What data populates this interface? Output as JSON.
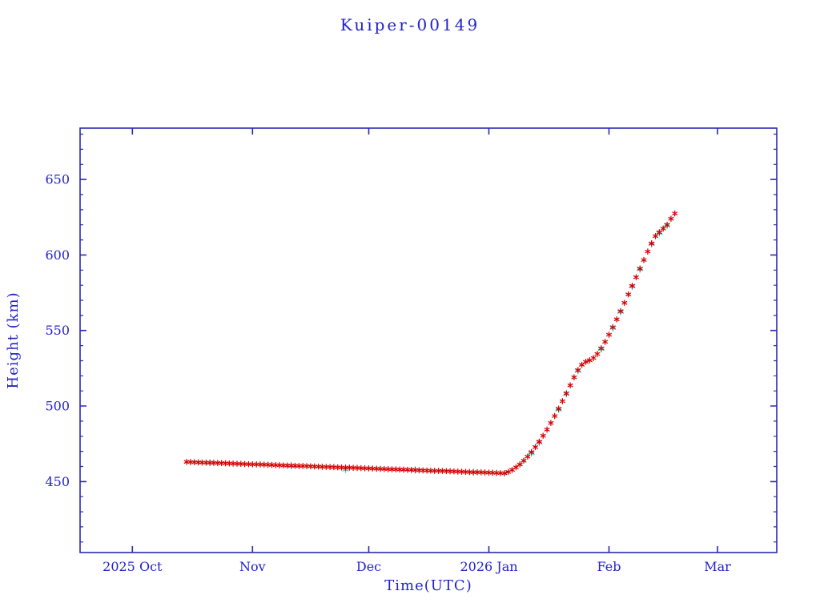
{
  "chart": {
    "title": "Kuiper-00149",
    "xlabel": "Time(UTC)",
    "ylabel": "Height (km)",
    "text_color": "#2323c8",
    "axis_color": "#2a2ab4",
    "series_colors": {
      "primary": "#d40000",
      "secondary": "#3fd9d9"
    }
  },
  "chart_data": {
    "type": "scatter",
    "title": "Kuiper-00149",
    "xlabel": "Time(UTC)",
    "ylabel": "Height (km)",
    "x_unit": "days since 2025-10-01",
    "xlim": [
      -13.5,
      166.3
    ],
    "ylim": [
      403,
      684
    ],
    "grid": false,
    "legend": null,
    "x_ticks": [
      {
        "label": "2025 Oct",
        "day": 0
      },
      {
        "label": "Nov",
        "day": 31
      },
      {
        "label": "Dec",
        "day": 61
      },
      {
        "label": "2026 Jan",
        "day": 92
      },
      {
        "label": "Feb",
        "day": 123
      },
      {
        "label": "Mar",
        "day": 151
      }
    ],
    "y_ticks": {
      "major": [
        450,
        500,
        550,
        600,
        650
      ],
      "minor_step": 10
    },
    "series": [
      {
        "name": "height-secondary",
        "color_key": "secondary",
        "marker": "asterisk",
        "marker_size": 3.9,
        "points": [
          [
            20,
            462.4
          ],
          [
            41,
            460.4
          ],
          [
            55,
            458.0
          ],
          [
            73,
            457.7
          ],
          [
            88,
            456.1
          ],
          [
            103,
            468.8
          ],
          [
            105,
            475.9
          ],
          [
            110,
            497.7
          ],
          [
            112,
            508.0
          ],
          [
            115,
            523.4
          ],
          [
            121,
            537.8
          ],
          [
            124,
            551.8
          ],
          [
            126,
            562.4
          ],
          [
            129,
            579.2
          ],
          [
            131,
            590.6
          ],
          [
            134,
            607.3
          ],
          [
            136,
            614.6
          ],
          [
            138,
            619.6
          ]
        ]
      },
      {
        "name": "height-primary",
        "color_key": "primary",
        "marker": "asterisk",
        "marker_size": 3.2,
        "points": [
          [
            14,
            463.0
          ],
          [
            15,
            462.9
          ],
          [
            16,
            462.8
          ],
          [
            17,
            462.7
          ],
          [
            18,
            462.6
          ],
          [
            19,
            462.5
          ],
          [
            20,
            462.5
          ],
          [
            21,
            462.4
          ],
          [
            22,
            462.3
          ],
          [
            23,
            462.2
          ],
          [
            24,
            462.1
          ],
          [
            25,
            462.0
          ],
          [
            26,
            461.9
          ],
          [
            27,
            461.8
          ],
          [
            28,
            461.7
          ],
          [
            29,
            461.6
          ],
          [
            30,
            461.5
          ],
          [
            31,
            461.4
          ],
          [
            32,
            461.4
          ],
          [
            33,
            461.3
          ],
          [
            34,
            461.2
          ],
          [
            35,
            461.1
          ],
          [
            36,
            461.0
          ],
          [
            37,
            460.9
          ],
          [
            38,
            460.8
          ],
          [
            39,
            460.7
          ],
          [
            40,
            460.6
          ],
          [
            41,
            460.5
          ],
          [
            42,
            460.4
          ],
          [
            43,
            460.3
          ],
          [
            44,
            460.3
          ],
          [
            45,
            460.2
          ],
          [
            46,
            460.1
          ],
          [
            47,
            460.0
          ],
          [
            48,
            459.9
          ],
          [
            49,
            459.8
          ],
          [
            50,
            459.7
          ],
          [
            51,
            459.6
          ],
          [
            52,
            459.5
          ],
          [
            53,
            459.4
          ],
          [
            54,
            459.3
          ],
          [
            55,
            459.2
          ],
          [
            56,
            459.2
          ],
          [
            57,
            459.1
          ],
          [
            58,
            459.0
          ],
          [
            59,
            458.9
          ],
          [
            60,
            458.8
          ],
          [
            61,
            458.7
          ],
          [
            62,
            458.6
          ],
          [
            63,
            458.5
          ],
          [
            64,
            458.4
          ],
          [
            65,
            458.3
          ],
          [
            66,
            458.2
          ],
          [
            67,
            458.1
          ],
          [
            68,
            458.1
          ],
          [
            69,
            458.0
          ],
          [
            70,
            457.9
          ],
          [
            71,
            457.8
          ],
          [
            72,
            457.7
          ],
          [
            73,
            457.6
          ],
          [
            74,
            457.5
          ],
          [
            75,
            457.4
          ],
          [
            76,
            457.3
          ],
          [
            77,
            457.2
          ],
          [
            78,
            457.1
          ],
          [
            79,
            457.1
          ],
          [
            80,
            457.0
          ],
          [
            81,
            456.9
          ],
          [
            82,
            456.8
          ],
          [
            83,
            456.7
          ],
          [
            84,
            456.6
          ],
          [
            85,
            456.5
          ],
          [
            86,
            456.4
          ],
          [
            87,
            456.3
          ],
          [
            88,
            456.2
          ],
          [
            89,
            456.2
          ],
          [
            90,
            456.1
          ],
          [
            91,
            456.0
          ],
          [
            92,
            455.9
          ],
          [
            93,
            455.8
          ],
          [
            94,
            455.7
          ],
          [
            95,
            455.6
          ],
          [
            96,
            455.5
          ],
          [
            97,
            456.4
          ],
          [
            98,
            457.7
          ],
          [
            99,
            459.4
          ],
          [
            100,
            461.4
          ],
          [
            101,
            463.8
          ],
          [
            102,
            466.5
          ],
          [
            103,
            469.5
          ],
          [
            104,
            472.8
          ],
          [
            105,
            476.4
          ],
          [
            106,
            480.3
          ],
          [
            107,
            484.4
          ],
          [
            108,
            488.8
          ],
          [
            109,
            493.4
          ],
          [
            110,
            498.2
          ],
          [
            111,
            503.2
          ],
          [
            112,
            508.4
          ],
          [
            113,
            513.7
          ],
          [
            114,
            519.0
          ],
          [
            115,
            523.8
          ],
          [
            116,
            527.3
          ],
          [
            117,
            529.3
          ],
          [
            118,
            530.3
          ],
          [
            119,
            531.8
          ],
          [
            120,
            534.5
          ],
          [
            121,
            538.2
          ],
          [
            122,
            542.5
          ],
          [
            123,
            547.2
          ],
          [
            124,
            552.2
          ],
          [
            125,
            557.4
          ],
          [
            126,
            562.8
          ],
          [
            127,
            568.3
          ],
          [
            128,
            573.9
          ],
          [
            129,
            579.6
          ],
          [
            130,
            585.3
          ],
          [
            131,
            591.0
          ],
          [
            132,
            596.7
          ],
          [
            133,
            602.3
          ],
          [
            134,
            607.7
          ],
          [
            135,
            612.5
          ],
          [
            136,
            615.0
          ],
          [
            137,
            617.5
          ],
          [
            138,
            620.0
          ],
          [
            139,
            624.0
          ],
          [
            140,
            627.5
          ]
        ]
      }
    ]
  }
}
